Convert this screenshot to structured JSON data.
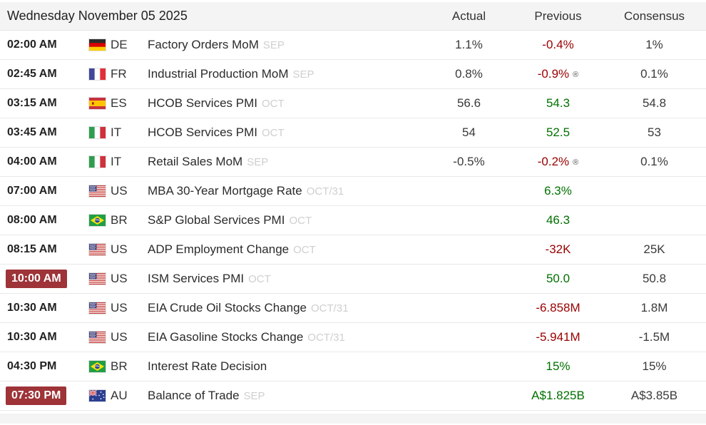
{
  "header": {
    "date_label": "Wednesday November 05 2025",
    "columns": [
      "Actual",
      "Previous",
      "Consensus"
    ]
  },
  "colors": {
    "positive": "#007000",
    "negative": "#990000",
    "time_badge_bg": "#9e3338",
    "band_bg": "#f4f4f5"
  },
  "rows": [
    {
      "time": "02:00 AM",
      "highlighted": false,
      "flag": "de",
      "country": "DE",
      "event": "Factory Orders MoM",
      "period": "SEP",
      "actual": {
        "text": "1.1%",
        "sentiment": "neutral",
        "revised": false
      },
      "previous": {
        "text": "-0.4%",
        "sentiment": "negative",
        "revised": false
      },
      "consensus": {
        "text": "1%",
        "sentiment": "neutral",
        "revised": false
      }
    },
    {
      "time": "02:45 AM",
      "highlighted": false,
      "flag": "fr",
      "country": "FR",
      "event": "Industrial Production MoM",
      "period": "SEP",
      "actual": {
        "text": "0.8%",
        "sentiment": "neutral",
        "revised": false
      },
      "previous": {
        "text": "-0.9%",
        "sentiment": "negative",
        "revised": true
      },
      "consensus": {
        "text": "0.1%",
        "sentiment": "neutral",
        "revised": false
      }
    },
    {
      "time": "03:15 AM",
      "highlighted": false,
      "flag": "es",
      "country": "ES",
      "event": "HCOB Services PMI",
      "period": "OCT",
      "actual": {
        "text": "56.6",
        "sentiment": "neutral",
        "revised": false
      },
      "previous": {
        "text": "54.3",
        "sentiment": "positive",
        "revised": false
      },
      "consensus": {
        "text": "54.8",
        "sentiment": "neutral",
        "revised": false
      }
    },
    {
      "time": "03:45 AM",
      "highlighted": false,
      "flag": "it",
      "country": "IT",
      "event": "HCOB Services PMI",
      "period": "OCT",
      "actual": {
        "text": "54",
        "sentiment": "neutral",
        "revised": false
      },
      "previous": {
        "text": "52.5",
        "sentiment": "positive",
        "revised": false
      },
      "consensus": {
        "text": "53",
        "sentiment": "neutral",
        "revised": false
      }
    },
    {
      "time": "04:00 AM",
      "highlighted": false,
      "flag": "it",
      "country": "IT",
      "event": "Retail Sales MoM",
      "period": "SEP",
      "actual": {
        "text": "-0.5%",
        "sentiment": "neutral",
        "revised": false
      },
      "previous": {
        "text": "-0.2%",
        "sentiment": "negative",
        "revised": true
      },
      "consensus": {
        "text": "0.1%",
        "sentiment": "neutral",
        "revised": false
      }
    },
    {
      "time": "07:00 AM",
      "highlighted": false,
      "flag": "us",
      "country": "US",
      "event": "MBA 30-Year Mortgage Rate",
      "period": "OCT/31",
      "actual": {
        "text": "",
        "sentiment": "neutral",
        "revised": false
      },
      "previous": {
        "text": "6.3%",
        "sentiment": "positive",
        "revised": false
      },
      "consensus": {
        "text": "",
        "sentiment": "neutral",
        "revised": false
      }
    },
    {
      "time": "08:00 AM",
      "highlighted": false,
      "flag": "br",
      "country": "BR",
      "event": "S&P Global Services PMI",
      "period": "OCT",
      "actual": {
        "text": "",
        "sentiment": "neutral",
        "revised": false
      },
      "previous": {
        "text": "46.3",
        "sentiment": "positive",
        "revised": false
      },
      "consensus": {
        "text": "",
        "sentiment": "neutral",
        "revised": false
      }
    },
    {
      "time": "08:15 AM",
      "highlighted": false,
      "flag": "us",
      "country": "US",
      "event": "ADP Employment Change",
      "period": "OCT",
      "actual": {
        "text": "",
        "sentiment": "neutral",
        "revised": false
      },
      "previous": {
        "text": "-32K",
        "sentiment": "negative",
        "revised": false
      },
      "consensus": {
        "text": "25K",
        "sentiment": "neutral",
        "revised": false
      }
    },
    {
      "time": "10:00 AM",
      "highlighted": true,
      "flag": "us",
      "country": "US",
      "event": "ISM Services PMI",
      "period": "OCT",
      "actual": {
        "text": "",
        "sentiment": "neutral",
        "revised": false
      },
      "previous": {
        "text": "50.0",
        "sentiment": "positive",
        "revised": false
      },
      "consensus": {
        "text": "50.8",
        "sentiment": "neutral",
        "revised": false
      }
    },
    {
      "time": "10:30 AM",
      "highlighted": false,
      "flag": "us",
      "country": "US",
      "event": "EIA Crude Oil Stocks Change",
      "period": "OCT/31",
      "actual": {
        "text": "",
        "sentiment": "neutral",
        "revised": false
      },
      "previous": {
        "text": "-6.858M",
        "sentiment": "negative",
        "revised": false
      },
      "consensus": {
        "text": "1.8M",
        "sentiment": "neutral",
        "revised": false
      }
    },
    {
      "time": "10:30 AM",
      "highlighted": false,
      "flag": "us",
      "country": "US",
      "event": "EIA Gasoline Stocks Change",
      "period": "OCT/31",
      "actual": {
        "text": "",
        "sentiment": "neutral",
        "revised": false
      },
      "previous": {
        "text": "-5.941M",
        "sentiment": "negative",
        "revised": false
      },
      "consensus": {
        "text": "-1.5M",
        "sentiment": "neutral",
        "revised": false
      }
    },
    {
      "time": "04:30 PM",
      "highlighted": false,
      "flag": "br",
      "country": "BR",
      "event": "Interest Rate Decision",
      "period": "",
      "actual": {
        "text": "",
        "sentiment": "neutral",
        "revised": false
      },
      "previous": {
        "text": "15%",
        "sentiment": "positive",
        "revised": false
      },
      "consensus": {
        "text": "15%",
        "sentiment": "neutral",
        "revised": false
      }
    },
    {
      "time": "07:30 PM",
      "highlighted": true,
      "flag": "au",
      "country": "AU",
      "event": "Balance of Trade",
      "period": "SEP",
      "actual": {
        "text": "",
        "sentiment": "neutral",
        "revised": false
      },
      "previous": {
        "text": "A$1.825B",
        "sentiment": "positive",
        "revised": false
      },
      "consensus": {
        "text": "A$3.85B",
        "sentiment": "neutral",
        "revised": false
      }
    }
  ]
}
